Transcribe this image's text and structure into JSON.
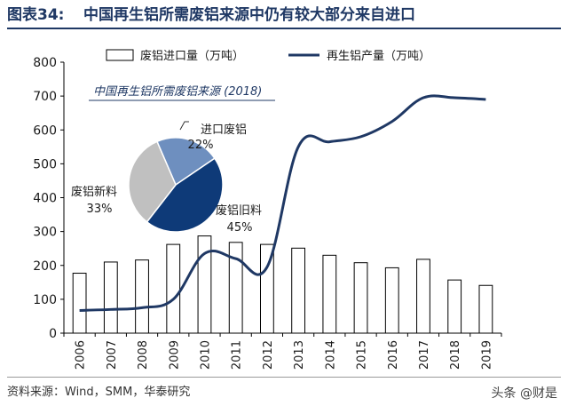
{
  "figure": {
    "number": "图表34:",
    "title": "中国再生铝所需废铝来源中仍有较大部分来自进口",
    "source": "资料来源：Wind，SMM，华泰研究",
    "watermark": "头条 @财是"
  },
  "colors": {
    "title": "#1f3864",
    "bar_fill": "#ffffff",
    "bar_stroke": "#000000",
    "line": "#1f3864",
    "pie_import": "#6e8fbf",
    "pie_old": "#0e3a78",
    "pie_new": "#c0c0c0"
  },
  "chart_data": [
    {
      "type": "bar+line",
      "categories": [
        "2006",
        "2007",
        "2008",
        "2009",
        "2010",
        "2011",
        "2012",
        "2013",
        "2014",
        "2015",
        "2016",
        "2017",
        "2018",
        "2019"
      ],
      "series": [
        {
          "name": "废铝进口量（万吨）",
          "type": "bar",
          "values": [
            177,
            210,
            216,
            262,
            287,
            268,
            262,
            251,
            230,
            208,
            193,
            218,
            157,
            141
          ]
        },
        {
          "name": "再生铝产量（万吨）",
          "type": "line",
          "values": [
            67,
            70,
            75,
            100,
            235,
            220,
            195,
            550,
            565,
            580,
            625,
            695,
            695,
            690
          ]
        }
      ],
      "ylim": [
        0,
        800
      ],
      "yticks": [
        "0",
        "100",
        "200",
        "300",
        "400",
        "500",
        "600",
        "700",
        "800"
      ],
      "legend_position": "top",
      "grid": false
    },
    {
      "type": "pie",
      "title": "中国再生铝所需废铝来源 (2018)",
      "slices": [
        {
          "label": "进口废铝",
          "value": 22,
          "pct_label": "22%"
        },
        {
          "label": "废铝旧料",
          "value": 45,
          "pct_label": "45%"
        },
        {
          "label": "废铝新料",
          "value": 33,
          "pct_label": "33%"
        }
      ]
    }
  ]
}
